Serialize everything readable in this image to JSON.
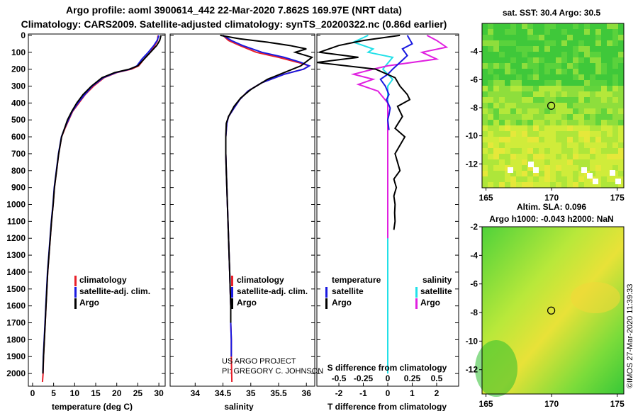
{
  "header": {
    "line1": "Argo profile: aoml 3900614_442 22-Mar-2020 7.862S 169.97E (NRT data)",
    "line2": "Climatology: CARS2009. Satellite-adjusted climatology: synTS_20200322.nc (0.86d earlier)"
  },
  "colors": {
    "climatology": "#e8202a",
    "satellite": "#1a1ae0",
    "argo": "#000000",
    "sat_salinity": "#22e0e8",
    "argo_salinity": "#e020e0"
  },
  "depth_axis": {
    "ylim": [
      2075,
      -8
    ],
    "ticks": [
      0,
      100,
      200,
      300,
      400,
      500,
      600,
      700,
      800,
      900,
      1000,
      1100,
      1200,
      1300,
      1400,
      1500,
      1600,
      1700,
      1800,
      1900,
      2000
    ]
  },
  "chart_data": [
    {
      "type": "line",
      "id": "temperature",
      "xlabel": "temperature (deg C)",
      "xlim": [
        -1,
        31.5
      ],
      "xticks": [
        0,
        5,
        10,
        15,
        20,
        25,
        30
      ],
      "legend": [
        "climatology",
        "satellite-adj. clim.",
        "Argo"
      ],
      "series": [
        {
          "name": "climatology",
          "color": "#e8202a",
          "x": [
            29.8,
            29.7,
            29.0,
            28.0,
            26.5,
            25.2,
            23.5,
            20.0,
            17.0,
            14.5,
            12.5,
            11.0,
            9.5,
            8.6,
            7.7,
            6.9,
            6.2,
            5.7,
            5.2,
            4.9,
            4.5,
            4.2,
            3.9,
            3.6,
            3.4,
            3.2,
            3.0,
            2.8,
            2.6,
            2.5,
            2.35
          ],
          "y": [
            0,
            30,
            60,
            100,
            140,
            180,
            200,
            220,
            250,
            300,
            350,
            400,
            450,
            500,
            550,
            600,
            700,
            800,
            900,
            1000,
            1100,
            1200,
            1300,
            1400,
            1500,
            1600,
            1700,
            1800,
            1900,
            2000,
            2050
          ]
        },
        {
          "name": "satellite-adj. clim.",
          "color": "#1a1ae0",
          "x": [
            30.0,
            29.6,
            28.8,
            27.5,
            26.0,
            24.8,
            23.2,
            19.8,
            16.8,
            14.2,
            12.4,
            10.8,
            9.4,
            8.5,
            7.6,
            6.85,
            6.15,
            5.65,
            5.15,
            4.85,
            4.45,
            4.15,
            3.85,
            3.55,
            3.35,
            3.15,
            2.95,
            2.75,
            2.55,
            2.45
          ],
          "y": [
            0,
            30,
            60,
            100,
            140,
            180,
            200,
            220,
            250,
            300,
            350,
            400,
            450,
            500,
            550,
            600,
            700,
            800,
            900,
            1000,
            1100,
            1200,
            1300,
            1400,
            1500,
            1600,
            1700,
            1800,
            1900,
            2000
          ]
        },
        {
          "name": "Argo",
          "color": "#000000",
          "x": [
            30.5,
            30.2,
            29.5,
            28.0,
            26.5,
            25.0,
            23.0,
            19.5,
            16.5,
            14.0,
            12.0,
            10.5,
            9.3,
            8.3,
            7.6,
            6.9,
            6.2,
            5.7,
            5.2,
            4.9,
            4.5,
            4.2,
            3.9,
            3.6,
            3.4,
            3.2,
            3.0,
            2.8,
            2.6,
            2.45
          ],
          "y": [
            0,
            30,
            60,
            100,
            140,
            180,
            200,
            220,
            250,
            300,
            350,
            400,
            450,
            500,
            550,
            600,
            700,
            800,
            900,
            1000,
            1100,
            1200,
            1300,
            1400,
            1500,
            1600,
            1700,
            1800,
            1900,
            2000
          ]
        }
      ]
    },
    {
      "type": "line",
      "id": "salinity",
      "xlabel": "salinity",
      "xlim": [
        33.55,
        36.15
      ],
      "xticks": [
        34,
        34.5,
        35,
        35.5,
        36
      ],
      "legend": [
        "climatology",
        "satellite-adj. clim.",
        "Argo"
      ],
      "series": [
        {
          "name": "climatology",
          "color": "#e8202a",
          "x": [
            34.5,
            34.6,
            34.8,
            35.1,
            35.5,
            35.85,
            36.05,
            35.95,
            35.6,
            35.2,
            34.95,
            34.8,
            34.7,
            34.6,
            34.57,
            34.55,
            34.55,
            34.56,
            34.57,
            34.58,
            34.59,
            34.6,
            34.61,
            34.62,
            34.63,
            34.64,
            34.64,
            34.65,
            34.65,
            34.66
          ],
          "y": [
            0,
            30,
            60,
            100,
            130,
            160,
            180,
            200,
            230,
            280,
            330,
            380,
            430,
            480,
            520,
            600,
            700,
            800,
            900,
            1000,
            1100,
            1200,
            1300,
            1400,
            1500,
            1600,
            1700,
            1800,
            1900,
            2050
          ]
        },
        {
          "name": "satellite-adj. clim.",
          "color": "#1a1ae0",
          "x": [
            34.5,
            34.65,
            34.85,
            35.2,
            35.6,
            35.9,
            36.05,
            35.95,
            35.6,
            35.2,
            34.95,
            34.8,
            34.7,
            34.6,
            34.57,
            34.55,
            34.55,
            34.56,
            34.57,
            34.58,
            34.59,
            34.6,
            34.61,
            34.62,
            34.63,
            34.64,
            34.64,
            34.65,
            34.65
          ],
          "y": [
            0,
            30,
            60,
            100,
            130,
            160,
            180,
            200,
            230,
            280,
            330,
            380,
            430,
            480,
            520,
            600,
            700,
            800,
            900,
            1000,
            1100,
            1200,
            1300,
            1400,
            1500,
            1600,
            1700,
            1800,
            1900
          ]
        },
        {
          "name": "Argo",
          "color": "#000000",
          "x": [
            34.45,
            34.8,
            35.3,
            35.7,
            36.0,
            35.8,
            36.1,
            35.9,
            35.6,
            35.3,
            35.0,
            34.82,
            34.7,
            34.6,
            34.56,
            34.55,
            34.55,
            34.56,
            34.57,
            34.58,
            34.59,
            34.6,
            34.61,
            34.62,
            34.63,
            34.64,
            34.64
          ],
          "y": [
            0,
            20,
            40,
            60,
            80,
            100,
            130,
            180,
            220,
            260,
            320,
            370,
            420,
            480,
            520,
            600,
            700,
            800,
            900,
            1000,
            1100,
            1200,
            1300,
            1400,
            1500,
            1600,
            1700
          ]
        }
      ]
    },
    {
      "type": "line",
      "id": "difference",
      "xlabel": "T difference from climatology",
      "xlim": [
        -2.9,
        2.9
      ],
      "xticks": [
        -2,
        -1,
        0,
        1,
        2
      ],
      "xtick_labels": [
        "-2",
        "-1",
        "0",
        "1",
        "2"
      ],
      "s_xlabel": "S difference from climatology",
      "s_xticks": [
        -0.5,
        -0.25,
        0,
        0.25,
        0.5
      ],
      "s_xtick_labels": [
        "-0.5",
        "-0.25",
        "0",
        "0.25",
        "0.5"
      ],
      "legend": {
        "temperature_title": "temperature",
        "salinity_title": "salinity",
        "items": [
          "satellite",
          "Argo"
        ]
      },
      "series": [
        {
          "name": "satellite (temperature)",
          "color": "#1a1ae0",
          "x": [
            0.8,
            1.0,
            0.6,
            0.8,
            0.5,
            0.2,
            0.0,
            -0.3,
            -0.1,
            0.05,
            -0.05,
            0.1,
            0.05,
            0.0,
            0.05
          ],
          "y": [
            0,
            50,
            80,
            120,
            160,
            200,
            230,
            260,
            300,
            350,
            380,
            430,
            470,
            500,
            560
          ]
        },
        {
          "name": "Argo (temperature)",
          "color": "#000000",
          "x": [
            0.5,
            -1.0,
            -2.0,
            -2.8,
            -1.2,
            -2.9,
            -0.5,
            0.3,
            0.5,
            0.8,
            0.9,
            0.4,
            0.6,
            0.3,
            0.7,
            0.3,
            0.5,
            0.25,
            0.35,
            0.25,
            0.3,
            0.28,
            0.3,
            0.25
          ],
          "y": [
            0,
            30,
            60,
            100,
            130,
            160,
            200,
            250,
            300,
            350,
            380,
            420,
            480,
            550,
            600,
            700,
            800,
            850,
            900,
            950,
            1000,
            1050,
            1100,
            1150
          ]
        },
        {
          "name": "satellite (salinity)",
          "color": "#22e0e8",
          "x": [
            -0.2,
            -0.35,
            -0.15,
            -0.2,
            0.05,
            -0.05,
            0.05,
            0.0,
            0.0,
            0.0,
            0.0,
            0.0,
            0.0,
            0.0
          ],
          "y": [
            0,
            40,
            80,
            100,
            130,
            200,
            260,
            300,
            400,
            600,
            900,
            1200,
            1600,
            2000
          ]
        },
        {
          "name": "Argo (salinity)",
          "color": "#e020e0",
          "x": [
            0.4,
            0.5,
            0.6,
            0.35,
            0.5,
            0.0,
            -0.15,
            -0.35,
            -0.15,
            -0.3,
            -0.1,
            0.0,
            0.0,
            0.0,
            0.0
          ],
          "y": [
            0,
            30,
            70,
            100,
            140,
            180,
            200,
            230,
            260,
            290,
            330,
            400,
            500,
            800,
            1200
          ]
        }
      ]
    },
    {
      "type": "heatmap",
      "id": "sst_map",
      "title": "sat. SST: 30.4 Argo: 30.5",
      "xlim": [
        164.7,
        175.5
      ],
      "ylim": [
        -13.7,
        -2.0
      ],
      "xticks": [
        165,
        170,
        175
      ],
      "yticks": [
        -4,
        -6,
        -8,
        -10,
        -12
      ],
      "marker": {
        "lon": 169.97,
        "lat": -7.862
      }
    },
    {
      "type": "heatmap",
      "id": "sla_map",
      "title": "Altim. SLA: 0.096",
      "subtitle": "Argo h1000: -0.043 h2000: NaN",
      "xlim": [
        164.7,
        175.5
      ],
      "ylim": [
        -13.7,
        -2.0
      ],
      "xticks": [
        165,
        170,
        175
      ],
      "yticks": [
        -2,
        -4,
        -6,
        -8,
        -10,
        -12
      ],
      "marker": {
        "lon": 169.97,
        "lat": -7.862
      }
    }
  ],
  "legend_labels": {
    "climatology": "climatology",
    "satellite_adj": "satellite-adj. clim.",
    "argo": "Argo"
  },
  "credit": {
    "line1": "US ARGO PROJECT",
    "line2": "PI: GREGORY C. JOHNSON"
  },
  "stamp": "©IMOS 27-Mar-2020 11:39:33"
}
